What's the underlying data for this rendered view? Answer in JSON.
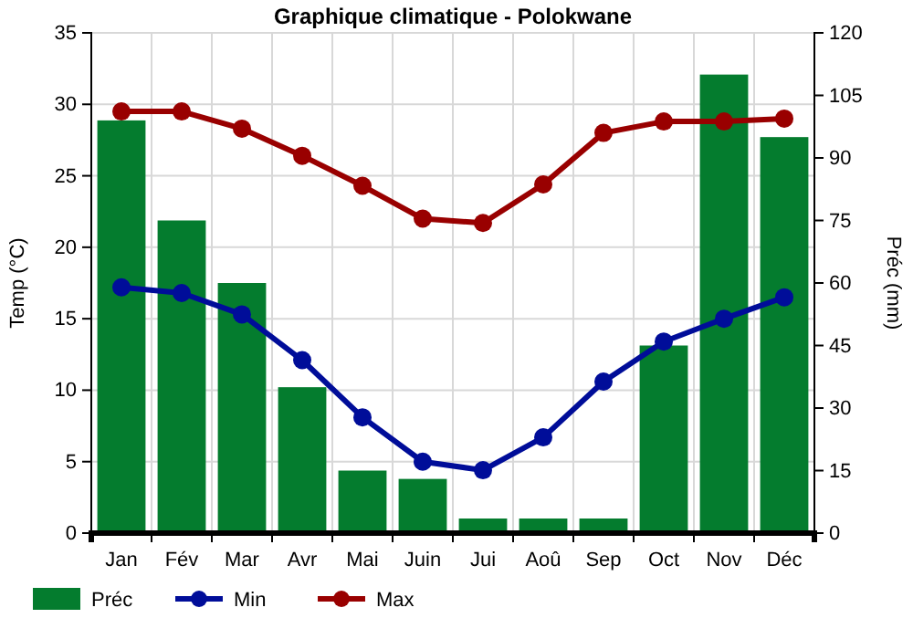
{
  "chart_data": {
    "type": "bar",
    "title": "Graphique climatique - Polokwane",
    "ylabel": "Temp (°C)",
    "y2label": "Préc (mm)",
    "categories": [
      "Jan",
      "Fév",
      "Mar",
      "Avr",
      "Mai",
      "Juin",
      "Jui",
      "Aoû",
      "Sep",
      "Oct",
      "Nov",
      "Déc"
    ],
    "series": [
      {
        "name": "Préc",
        "axis": "y2",
        "color": "#047c2e",
        "values": [
          99,
          75,
          60,
          35,
          15,
          13,
          3.5,
          3.5,
          3.5,
          45,
          110,
          95
        ]
      },
      {
        "name": "Min",
        "type": "line",
        "color": "#000d99",
        "values": [
          17.2,
          16.8,
          15.3,
          12.1,
          8.1,
          5,
          4.4,
          6.7,
          10.6,
          13.4,
          15,
          16.5
        ]
      },
      {
        "name": "Max",
        "type": "line",
        "color": "#990000",
        "values": [
          29.5,
          29.5,
          28.3,
          26.4,
          24.3,
          22,
          21.7,
          24.4,
          28,
          28.8,
          28.8,
          29
        ]
      }
    ],
    "ylim": [
      0,
      35
    ],
    "yticks": [
      0,
      5,
      10,
      15,
      20,
      25,
      30,
      35
    ],
    "y2lim": [
      0,
      120
    ],
    "y2ticks": [
      0,
      15,
      30,
      45,
      60,
      75,
      90,
      105,
      120
    ],
    "grid": true,
    "legend": "bottom left",
    "marker": "circle",
    "line_style": "solid"
  }
}
